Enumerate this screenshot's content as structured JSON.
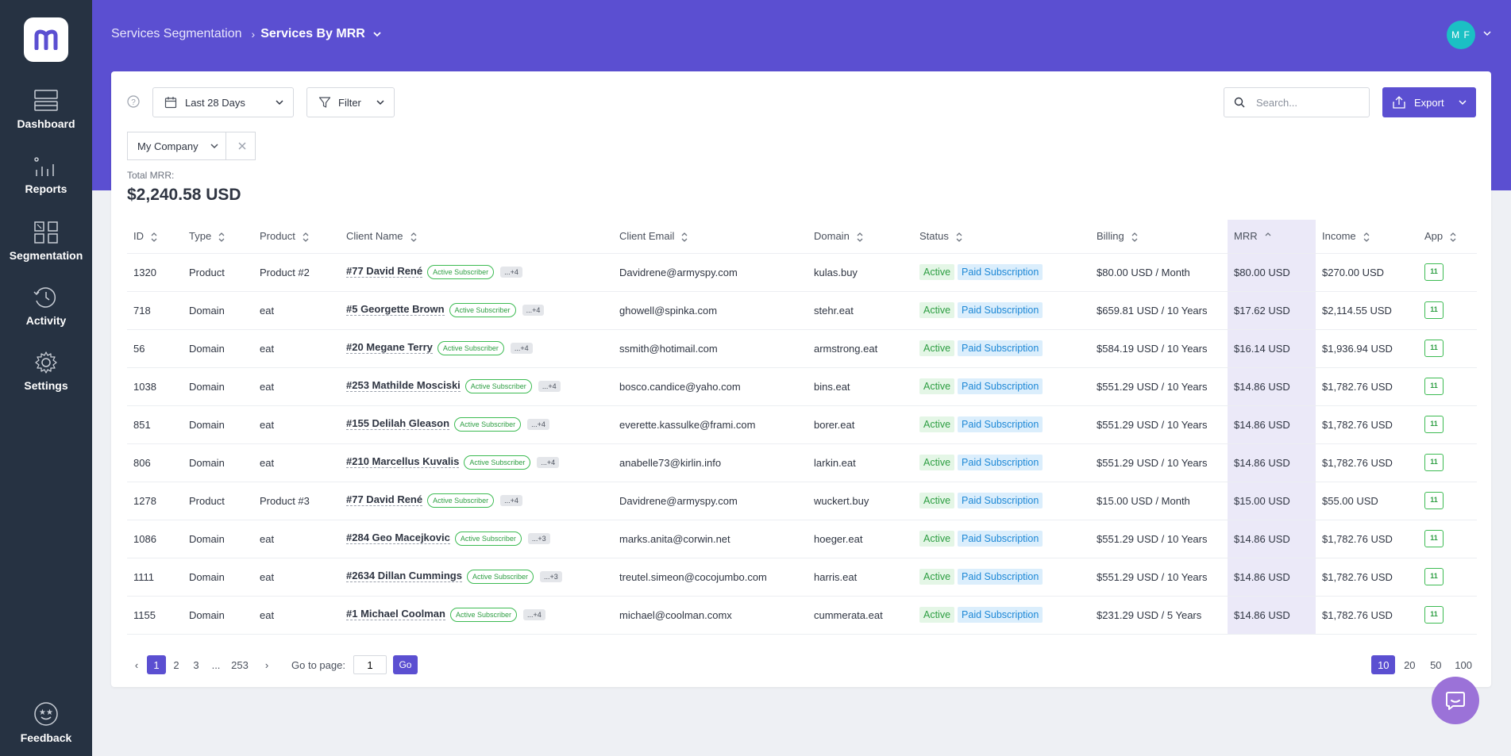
{
  "nav": {
    "items": [
      {
        "label": "Dashboard",
        "icon": "dashboard-icon"
      },
      {
        "label": "Reports",
        "icon": "reports-icon"
      },
      {
        "label": "Segmentation",
        "icon": "segmentation-icon"
      },
      {
        "label": "Activity",
        "icon": "activity-icon"
      },
      {
        "label": "Settings",
        "icon": "gear-icon"
      }
    ],
    "feedback": "Feedback"
  },
  "header": {
    "breadcrumb": [
      "Services Segmentation",
      "Services By MRR"
    ],
    "avatar_initials": "M F"
  },
  "toolbar": {
    "date_range": "Last 28 Days",
    "filter_label": "Filter",
    "search_placeholder": "Search...",
    "export_label": "Export",
    "company": "My Company"
  },
  "summary": {
    "label": "Total MRR:",
    "value": "$2,240.58 USD"
  },
  "table": {
    "columns": [
      "ID",
      "Type",
      "Product",
      "Client Name",
      "Client Email",
      "Domain",
      "Status",
      "Billing",
      "MRR",
      "Income",
      "App"
    ],
    "rows": [
      {
        "id": "1320",
        "type": "Product",
        "product": "Product #2",
        "client": "#77 David René",
        "sub": "Active Subscriber",
        "more": "...+4",
        "email": "Davidrene@armyspy.com",
        "domain": "kulas.buy",
        "status": "Active",
        "sub_status": "Paid Subscription",
        "billing": "$80.00 USD / Month",
        "mrr": "$80.00 USD",
        "income": "$270.00 USD",
        "app": "11"
      },
      {
        "id": "718",
        "type": "Domain",
        "product": "eat",
        "client": "#5 Georgette Brown",
        "sub": "Active Subscriber",
        "more": "...+4",
        "email": "ghowell@spinka.com",
        "domain": "stehr.eat",
        "status": "Active",
        "sub_status": "Paid Subscription",
        "billing": "$659.81 USD / 10 Years",
        "mrr": "$17.62 USD",
        "income": "$2,114.55 USD",
        "app": "11"
      },
      {
        "id": "56",
        "type": "Domain",
        "product": "eat",
        "client": "#20 Megane Terry",
        "sub": "Active Subscriber",
        "more": "...+4",
        "email": "ssmith@hotimail.com",
        "domain": "armstrong.eat",
        "status": "Active",
        "sub_status": "Paid Subscription",
        "billing": "$584.19 USD / 10 Years",
        "mrr": "$16.14 USD",
        "income": "$1,936.94 USD",
        "app": "11"
      },
      {
        "id": "1038",
        "type": "Domain",
        "product": "eat",
        "client": "#253 Mathilde Mosciski",
        "sub": "Active Subscriber",
        "more": "...+4",
        "email": "bosco.candice@yaho.com",
        "domain": "bins.eat",
        "status": "Active",
        "sub_status": "Paid Subscription",
        "billing": "$551.29 USD / 10 Years",
        "mrr": "$14.86 USD",
        "income": "$1,782.76 USD",
        "app": "11"
      },
      {
        "id": "851",
        "type": "Domain",
        "product": "eat",
        "client": "#155 Delilah Gleason",
        "sub": "Active Subscriber",
        "more": "...+4",
        "email": "everette.kassulke@frami.com",
        "domain": "borer.eat",
        "status": "Active",
        "sub_status": "Paid Subscription",
        "billing": "$551.29 USD / 10 Years",
        "mrr": "$14.86 USD",
        "income": "$1,782.76 USD",
        "app": "11"
      },
      {
        "id": "806",
        "type": "Domain",
        "product": "eat",
        "client": "#210 Marcellus Kuvalis",
        "sub": "Active Subscriber",
        "more": "...+4",
        "email": "anabelle73@kirlin.info",
        "domain": "larkin.eat",
        "status": "Active",
        "sub_status": "Paid Subscription",
        "billing": "$551.29 USD / 10 Years",
        "mrr": "$14.86 USD",
        "income": "$1,782.76 USD",
        "app": "11"
      },
      {
        "id": "1278",
        "type": "Product",
        "product": "Product #3",
        "client": "#77 David René",
        "sub": "Active Subscriber",
        "more": "...+4",
        "email": "Davidrene@armyspy.com",
        "domain": "wuckert.buy",
        "status": "Active",
        "sub_status": "Paid Subscription",
        "billing": "$15.00 USD / Month",
        "mrr": "$15.00 USD",
        "income": "$55.00 USD",
        "app": "11"
      },
      {
        "id": "1086",
        "type": "Domain",
        "product": "eat",
        "client": "#284 Geo Macejkovic",
        "sub": "Active Subscriber",
        "more": "...+3",
        "email": "marks.anita@corwin.net",
        "domain": "hoeger.eat",
        "status": "Active",
        "sub_status": "Paid Subscription",
        "billing": "$551.29 USD / 10 Years",
        "mrr": "$14.86 USD",
        "income": "$1,782.76 USD",
        "app": "11"
      },
      {
        "id": "1111",
        "type": "Domain",
        "product": "eat",
        "client": "#2634 Dillan Cummings",
        "sub": "Active Subscriber",
        "more": "...+3",
        "email": "treutel.simeon@cocojumbo.com",
        "domain": "harris.eat",
        "status": "Active",
        "sub_status": "Paid Subscription",
        "billing": "$551.29 USD / 10 Years",
        "mrr": "$14.86 USD",
        "income": "$1,782.76 USD",
        "app": "11"
      },
      {
        "id": "1155",
        "type": "Domain",
        "product": "eat",
        "client": "#1 Michael Coolman",
        "sub": "Active Subscriber",
        "more": "...+4",
        "email": "michael@coolman.comx",
        "domain": "cummerata.eat",
        "status": "Active",
        "sub_status": "Paid Subscription",
        "billing": "$231.29 USD / 5 Years",
        "mrr": "$14.86 USD",
        "income": "$1,782.76 USD",
        "app": "11"
      }
    ]
  },
  "pagination": {
    "pages": [
      "1",
      "2",
      "3",
      "...",
      "253"
    ],
    "current": "1",
    "goto_label": "Go to page:",
    "goto_value": "1",
    "go_label": "Go",
    "page_sizes": [
      "10",
      "20",
      "50",
      "100"
    ],
    "page_size": "10"
  },
  "colors": {
    "brand": "#5b4fd1",
    "sidebar": "#263242",
    "success": "#3cbb52",
    "info": "#1e88d6"
  }
}
